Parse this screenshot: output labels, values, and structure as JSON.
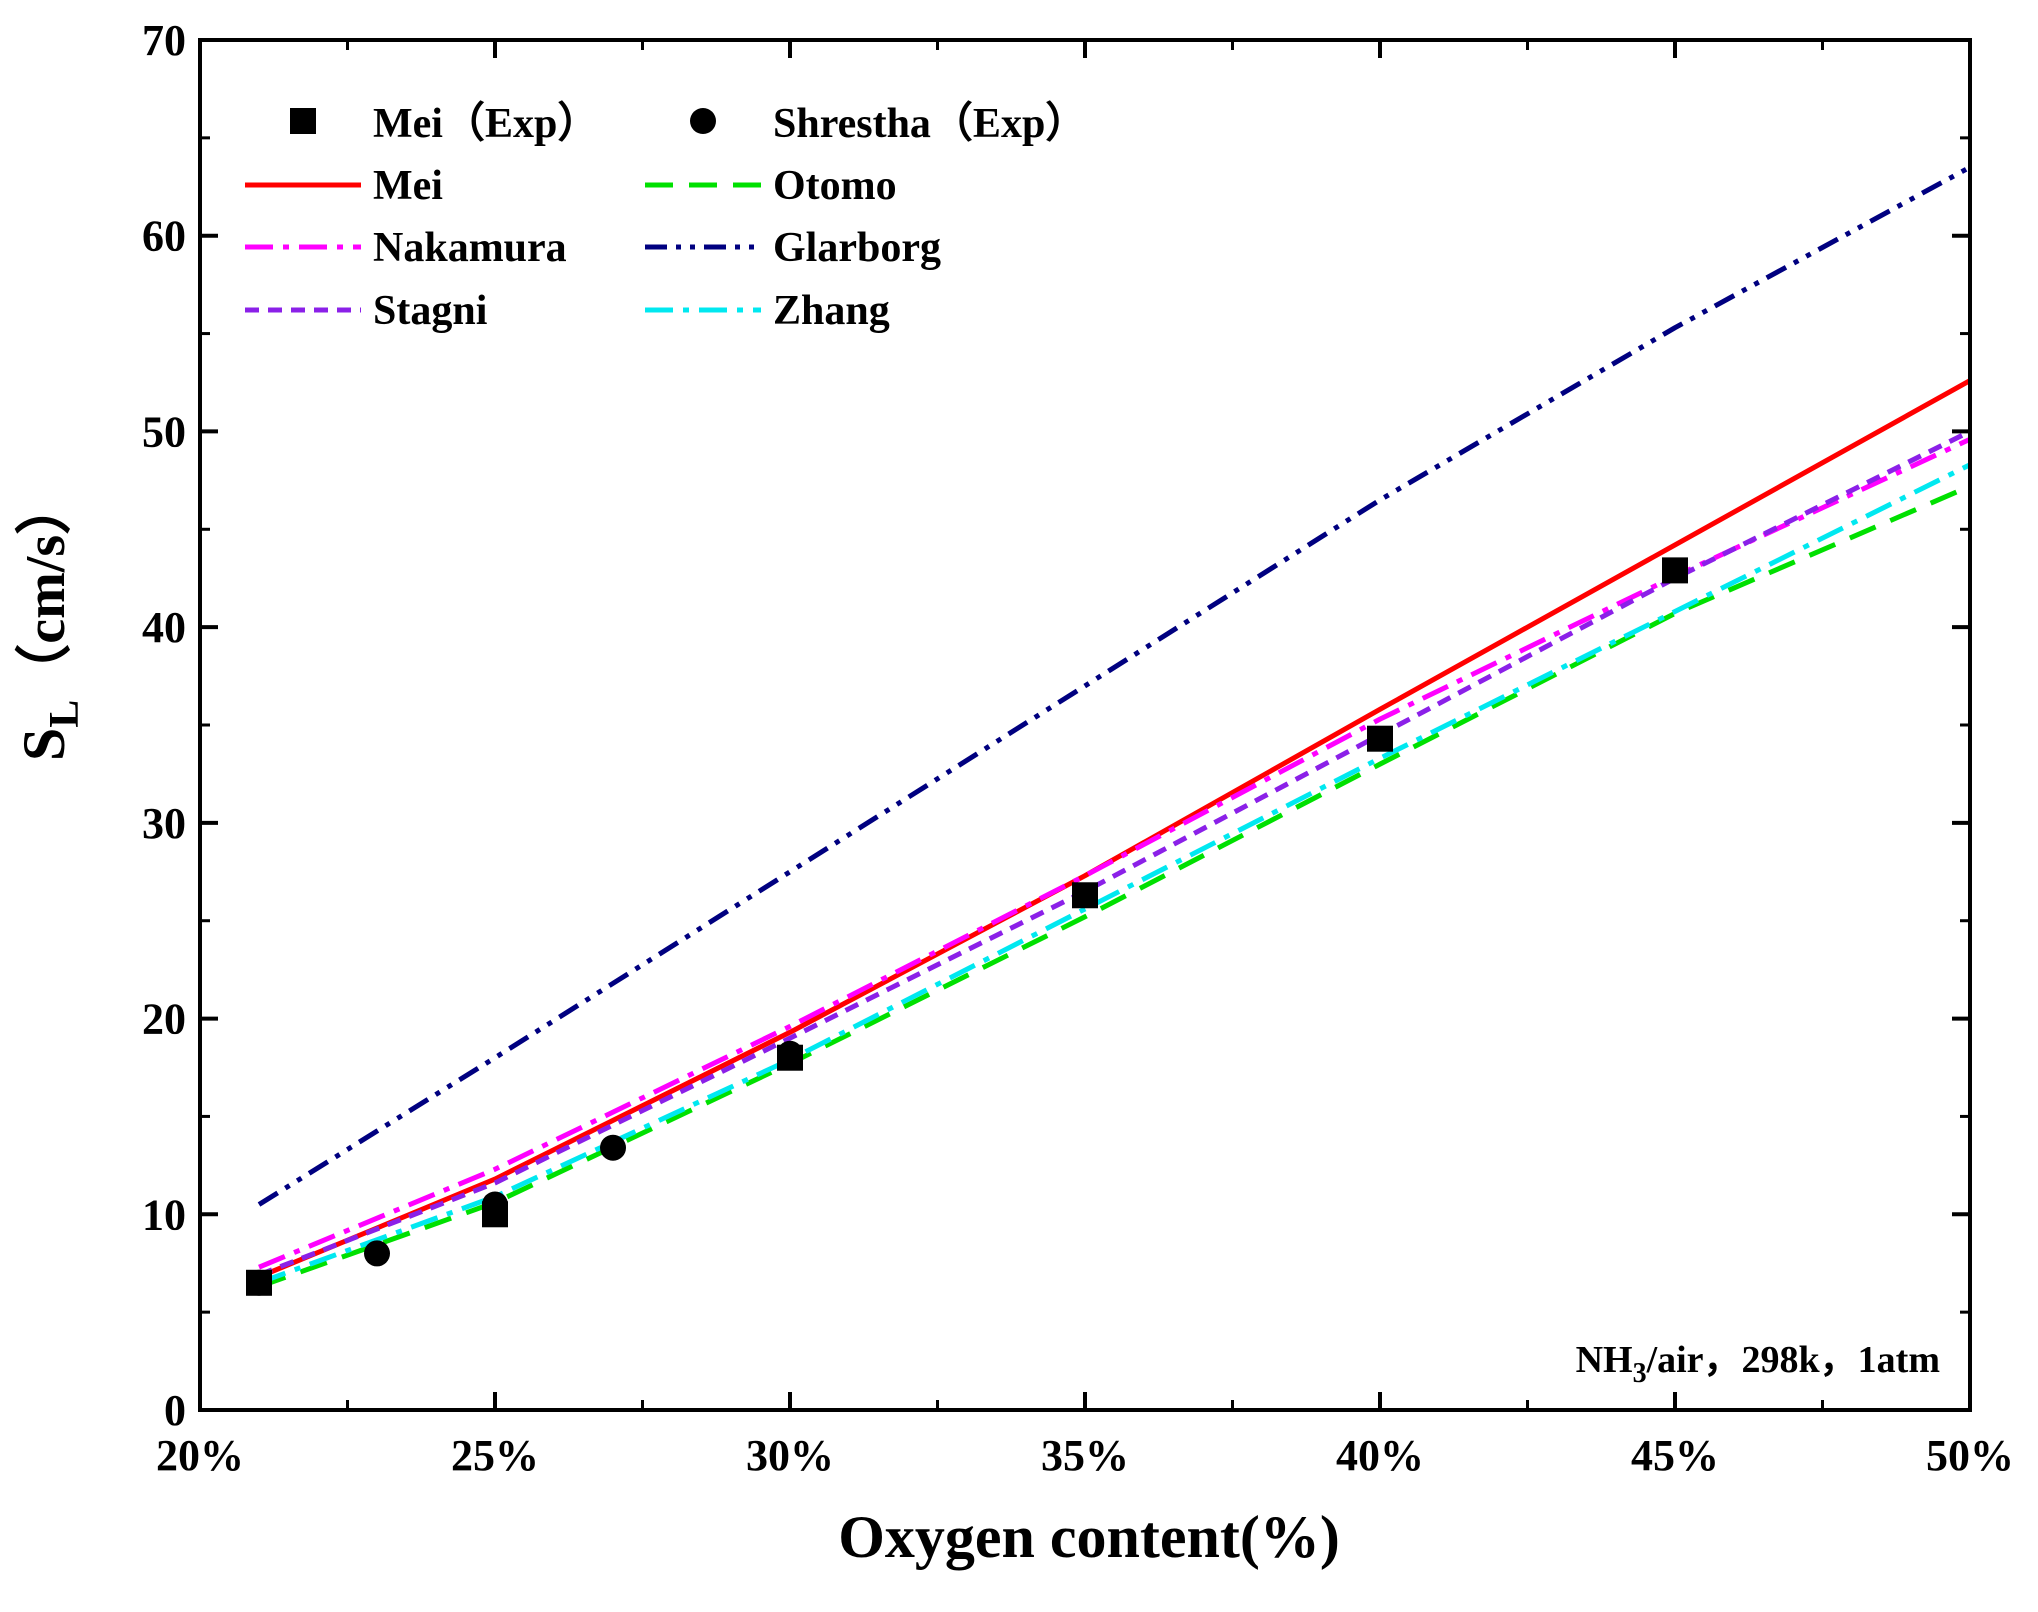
{
  "chart_data": {
    "type": "line",
    "title": "",
    "xlabel": "Oxygen content(%)",
    "ylabel_main": "S",
    "ylabel_sub": "L",
    "ylabel_unit": "（cm/s）",
    "xlim": [
      20,
      50
    ],
    "ylim": [
      0,
      70
    ],
    "x_major_ticks": [
      20,
      25,
      30,
      35,
      40,
      45,
      50
    ],
    "x_tick_labels": [
      "20%",
      "25%",
      "30%",
      "35%",
      "40%",
      "45%",
      "50%"
    ],
    "y_major_ticks": [
      0,
      10,
      20,
      30,
      40,
      50,
      60,
      70
    ],
    "y_tick_labels": [
      "0",
      "10",
      "20",
      "30",
      "40",
      "50",
      "60",
      "70"
    ],
    "annotation": {
      "prefix": "NH",
      "sub": "3",
      "suffix": "/air，298k，1atm"
    },
    "legend_position": "top-left",
    "series": [
      {
        "name": "Mei（Exp）",
        "kind": "scatter",
        "marker": "square",
        "color": "#000000",
        "x": [
          21,
          25,
          30,
          35,
          40,
          45
        ],
        "values": [
          6.5,
          10.0,
          18.0,
          26.3,
          34.3,
          42.9
        ]
      },
      {
        "name": "Shrestha（Exp）",
        "kind": "scatter",
        "marker": "circle",
        "color": "#000000",
        "x": [
          21,
          23,
          25,
          27,
          30
        ],
        "values": [
          6.5,
          8.0,
          10.5,
          13.4,
          18.2
        ]
      },
      {
        "name": "Mei",
        "kind": "line",
        "dash": "solid",
        "color": "#ff0000",
        "x": [
          21,
          25,
          30,
          35,
          40,
          45,
          50
        ],
        "values": [
          6.8,
          11.8,
          19.3,
          27.3,
          35.8,
          44.2,
          52.6
        ]
      },
      {
        "name": "Otomo",
        "kind": "line",
        "dash": "dash",
        "color": "#00e000",
        "x": [
          21,
          25,
          30,
          35,
          40,
          45,
          50
        ],
        "values": [
          6.3,
          10.6,
          17.7,
          25.2,
          33.0,
          40.7,
          47.2
        ]
      },
      {
        "name": "Nakamura",
        "kind": "line",
        "dash": "dashdot",
        "color": "#ff00ff",
        "x": [
          21,
          25,
          30,
          35,
          40,
          45,
          50
        ],
        "values": [
          7.3,
          12.3,
          19.6,
          27.3,
          35.3,
          42.6,
          49.6
        ]
      },
      {
        "name": "Glarborg",
        "kind": "line",
        "dash": "dashdotdot",
        "color": "#000080",
        "x": [
          21,
          25,
          30,
          35,
          40,
          45,
          50
        ],
        "values": [
          10.5,
          18.0,
          27.5,
          37.0,
          46.5,
          55.3,
          63.5
        ]
      },
      {
        "name": "Stagni",
        "kind": "line",
        "dash": "shortdash",
        "color": "#8b20e8",
        "x": [
          21,
          25,
          30,
          35,
          40,
          45,
          50
        ],
        "values": [
          6.9,
          11.6,
          19.0,
          26.5,
          34.5,
          42.5,
          50.0
        ]
      },
      {
        "name": "Zhang",
        "kind": "line",
        "dash": "dashdot",
        "color": "#00e8f0",
        "x": [
          21,
          25,
          30,
          35,
          40,
          45,
          50
        ],
        "values": [
          6.5,
          10.9,
          17.9,
          25.6,
          33.3,
          40.8,
          48.3
        ]
      }
    ]
  }
}
